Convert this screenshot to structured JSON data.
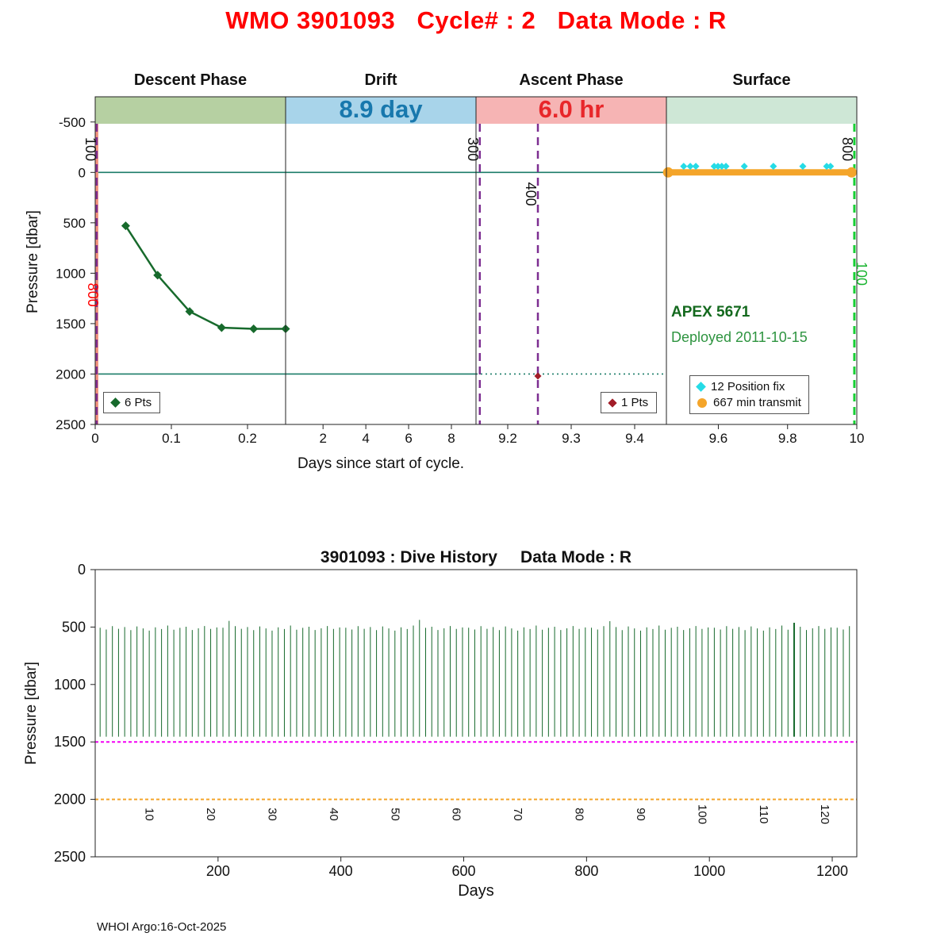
{
  "footer": {
    "credit": "WHOI Argo:16-Oct-2025"
  },
  "chart_data": [
    {
      "type": "line",
      "title": "WMO 3901093   Cycle# : 2   Data Mode : R",
      "title_color": "#ff0000",
      "xlabel": "Days since start of cycle.",
      "ylabel": "Pressure [dbar]",
      "ylim": [
        -750,
        2500
      ],
      "y_reversed": true,
      "y_ticks": [
        "-500",
        "0",
        "500",
        "1000",
        "1500",
        "2000",
        "2500"
      ],
      "y_tick_values": [
        -500,
        0,
        500,
        1000,
        1500,
        2000,
        2500
      ],
      "panels": [
        {
          "name": "Descent Phase",
          "band_color": "#b6d0a2",
          "x_range": [
            0,
            0.25
          ],
          "tick_values": [
            0,
            0.1,
            0.2
          ],
          "tick_labels": [
            "0",
            "0.1",
            "0.2"
          ]
        },
        {
          "name": "Drift",
          "band_color": "#a8d4ea",
          "band_label": "8.9 day",
          "band_label_color": "#1878ad",
          "x_range": [
            0.25,
            9.15
          ],
          "tick_values": [
            2,
            4,
            6,
            8
          ],
          "tick_labels": [
            "2",
            "4",
            "6",
            "8"
          ]
        },
        {
          "name": "Ascent Phase",
          "band_color": "#f6b4b4",
          "band_label": "6.0 hr",
          "band_label_color": "#e8262a",
          "x_range": [
            9.15,
            9.45
          ],
          "tick_values": [
            9.2,
            9.3,
            9.4
          ],
          "tick_labels": [
            "9.2",
            "9.3",
            "9.4"
          ]
        },
        {
          "name": "Surface",
          "band_color": "#cee7d6",
          "x_range": [
            9.45,
            10.0
          ],
          "tick_values": [
            9.6,
            9.8,
            10
          ],
          "tick_labels": [
            "9.6",
            "9.8",
            "10"
          ]
        }
      ],
      "h_lines": [
        {
          "p": 0,
          "x_from": 0,
          "x_to": 10,
          "color": "#1b7c68",
          "width": 1.6
        },
        {
          "p": 2000,
          "x_from": 0,
          "x_to": 9.15,
          "color": "#1b7c68",
          "width": 1.6
        },
        {
          "p": 2000,
          "x_from": 9.15,
          "x_to": 9.45,
          "color": "#1b7c68",
          "width": 1.6,
          "dash": "2,4"
        }
      ],
      "v_lines": [
        {
          "id": "park-start-line",
          "x": 0.002,
          "color": "#f2917e",
          "width": 4
        },
        {
          "id": "event-100-line",
          "x": 0.002,
          "color": "#7d2e91",
          "width": 2.5,
          "dash": "10,7"
        },
        {
          "id": "event-300-line",
          "x": 9.156,
          "color": "#7d2e91",
          "width": 2.5,
          "dash": "10,7"
        },
        {
          "id": "event-400-line",
          "x": 9.2475,
          "color": "#7d2e91",
          "width": 2.5,
          "dash": "10,7"
        },
        {
          "id": "event-800-line",
          "x": 9.993,
          "color": "#17d034",
          "width": 3,
          "dash": "10,7"
        }
      ],
      "rotated_labels": [
        {
          "text": "100",
          "x": 0.002,
          "p": -230,
          "dx": -8,
          "color": "#111111"
        },
        {
          "text": "300",
          "x": 9.156,
          "p": -230,
          "dx": -9,
          "color": "#111111"
        },
        {
          "text": "400",
          "x": 9.2475,
          "p": 215,
          "dx": -9,
          "color": "#111111"
        },
        {
          "text": "800",
          "x": 9.993,
          "p": -230,
          "dx": -9,
          "color": "#111111"
        },
        {
          "text": "800",
          "x": 0.002,
          "p": 1215,
          "dx": -5,
          "color": "#ff0000"
        },
        {
          "text": "100",
          "x": 9.993,
          "p": 1005,
          "dx": 9,
          "color": "#17b32e"
        }
      ],
      "series": [
        {
          "id": "descent-profile-series",
          "color": "#176a2c",
          "marker": "diamond",
          "marker_size": 5.5,
          "line_width": 2.5,
          "points": [
            [
              0.04,
              530
            ],
            [
              0.082,
              1020
            ],
            [
              0.124,
              1380
            ],
            [
              0.166,
              1540
            ],
            [
              0.208,
              1552
            ],
            [
              0.25,
              1552
            ]
          ]
        },
        {
          "id": "ascent-point-series",
          "color": "#a21d28",
          "marker": "diamond",
          "marker_size": 4.5,
          "line_width": 0,
          "points": [
            [
              9.2475,
              2020
            ]
          ]
        },
        {
          "id": "surface-transmit-series",
          "color": "#f4a52a",
          "marker": "circle",
          "marker_size": 6.5,
          "line_width": 8,
          "points": [
            [
              9.455,
              0
            ],
            [
              9.985,
              0
            ]
          ]
        },
        {
          "id": "position-fix-series",
          "color": "#25dbe6",
          "marker": "diamond",
          "marker_size": 4.5,
          "line_width": 0,
          "points": [
            [
              9.5,
              -60
            ],
            [
              9.519,
              -60
            ],
            [
              9.535,
              -60
            ],
            [
              9.588,
              -60
            ],
            [
              9.599,
              -60
            ],
            [
              9.61,
              -60
            ],
            [
              9.622,
              -60
            ],
            [
              9.675,
              -60
            ],
            [
              9.759,
              -60
            ],
            [
              9.844,
              -60
            ],
            [
              9.913,
              -60
            ],
            [
              9.924,
              -60
            ]
          ]
        }
      ],
      "annotations": {
        "float_id": "APEX 5671",
        "float_id_color": "#14691e",
        "deployed": "Deployed 2011-10-15",
        "deployed_color": "#2e9440"
      },
      "legends": {
        "descent": {
          "label": "6 Pts",
          "marker": "diamond",
          "marker_color": "#176a2c"
        },
        "ascent": {
          "label": "1 Pts",
          "marker": "diamond",
          "marker_color": "#a21d28"
        },
        "surface": {
          "items": [
            {
              "label": "12 Position fix",
              "marker": "diamond",
              "marker_color": "#25dbe6"
            },
            {
              "label": "667 min transmit",
              "marker": "circle",
              "marker_color": "#f4a52a"
            }
          ]
        }
      }
    },
    {
      "type": "line-spikes",
      "title": "3901093 : Dive History     Data Mode : R",
      "xlabel": "Days",
      "ylabel": "Pressure [dbar]",
      "xlim": [
        0,
        1240
      ],
      "ylim": [
        0,
        2500
      ],
      "y_reversed": true,
      "x_ticks": [
        "200",
        "400",
        "600",
        "800",
        "1000",
        "1200"
      ],
      "x_tick_values": [
        200,
        400,
        600,
        800,
        1000,
        1200
      ],
      "y_ticks": [
        "0",
        "500",
        "1000",
        "1500",
        "2000",
        "2500"
      ],
      "y_tick_values": [
        0,
        500,
        1000,
        1500,
        2000,
        2500
      ],
      "spikes": {
        "color": "#176a2c",
        "day_start": 8,
        "day_step": 10,
        "count": 123,
        "top_pattern": [
          506,
          521,
          492,
          515,
          500,
          527,
          495,
          512,
          531,
          502,
          517,
          487,
          523,
          507,
          497,
          526,
          511,
          491,
          516,
          503
        ],
        "bottom": 1455,
        "tall": [
          {
            "index": 21,
            "top": 446
          },
          {
            "index": 52,
            "top": 438
          },
          {
            "index": 83,
            "top": 449
          },
          {
            "index": 113,
            "top": 463,
            "width": 2
          }
        ]
      },
      "h_lines": [
        {
          "p": 1500,
          "color": "#f400f4",
          "dash": "4,3",
          "width": 2
        },
        {
          "p": 2000,
          "color": "#f4a52a",
          "dash": "4,3",
          "width": 2
        }
      ],
      "cycle_labels": {
        "color": "#111111",
        "p": 2130,
        "items": [
          {
            "day": 88,
            "label": "10"
          },
          {
            "day": 188,
            "label": "20"
          },
          {
            "day": 288,
            "label": "30"
          },
          {
            "day": 388,
            "label": "40"
          },
          {
            "day": 488,
            "label": "50"
          },
          {
            "day": 588,
            "label": "60"
          },
          {
            "day": 688,
            "label": "70"
          },
          {
            "day": 788,
            "label": "80"
          },
          {
            "day": 888,
            "label": "90"
          },
          {
            "day": 988,
            "label": "100"
          },
          {
            "day": 1088,
            "label": "110"
          },
          {
            "day": 1188,
            "label": "120"
          }
        ]
      }
    }
  ]
}
